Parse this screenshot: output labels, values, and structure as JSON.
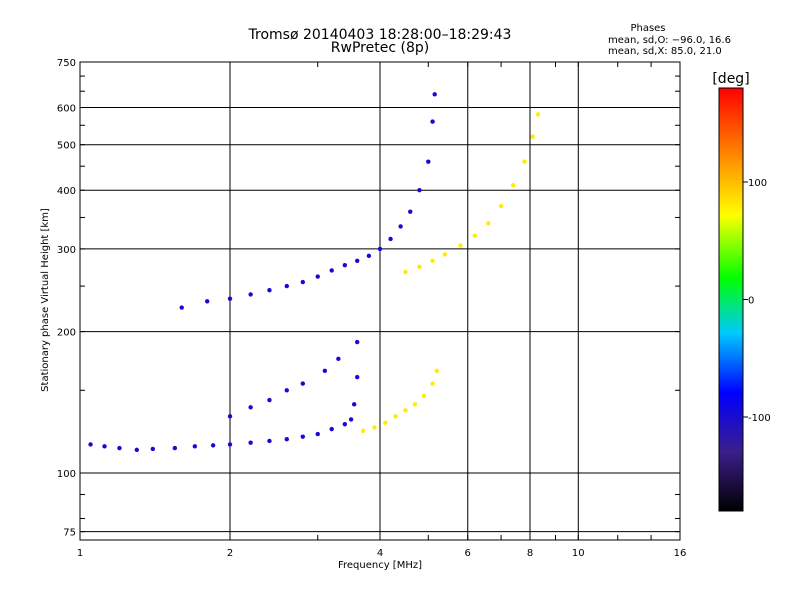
{
  "chart_data": {
    "type": "scatter",
    "title": "Tromsø 20140403 18:28:00–18:29:43",
    "subtitle": "RwPretec (8p)",
    "xlabel": "Frequency [MHz]",
    "ylabel": "Stationary phase Virtual Height [km]",
    "x_scale": "log",
    "y_scale": "log",
    "xlim": [
      1,
      16
    ],
    "ylim": [
      72,
      750
    ],
    "x_ticks": [
      1,
      2,
      4,
      6,
      8,
      10,
      16
    ],
    "y_ticks": [
      75,
      100,
      200,
      300,
      400,
      500,
      600,
      750
    ],
    "grid": true,
    "stats": {
      "heading": "Phases",
      "line_o": "mean, sd,O: −96.0, 16.6",
      "line_x": "mean, sd,X:  85.0, 21.0"
    },
    "colorbar": {
      "label": "[deg]",
      "range": [
        -180,
        180
      ],
      "ticks": [
        100,
        0,
        -100
      ],
      "colormap": "rainbow",
      "colors": [
        "#000000",
        "#3b1e8a",
        "#0000ff",
        "#00c8ff",
        "#00ff00",
        "#ffff00",
        "#ff8000",
        "#ff0000"
      ]
    },
    "series": [
      {
        "name": "O",
        "phase_deg": -96,
        "points": [
          [
            1.05,
            115
          ],
          [
            1.12,
            114
          ],
          [
            1.2,
            113
          ],
          [
            1.3,
            112
          ],
          [
            1.4,
            112.5
          ],
          [
            1.55,
            113
          ],
          [
            1.7,
            114
          ],
          [
            1.85,
            114.5
          ],
          [
            2.0,
            115
          ],
          [
            2.2,
            116
          ],
          [
            2.4,
            117
          ],
          [
            2.6,
            118
          ],
          [
            2.8,
            119.5
          ],
          [
            3.0,
            121
          ],
          [
            3.2,
            124
          ],
          [
            3.4,
            127
          ],
          [
            3.5,
            130
          ],
          [
            3.55,
            140
          ],
          [
            3.6,
            160
          ],
          [
            3.6,
            190
          ],
          [
            1.6,
            225
          ],
          [
            1.8,
            232
          ],
          [
            2.0,
            235
          ],
          [
            2.2,
            240
          ],
          [
            2.4,
            245
          ],
          [
            2.6,
            250
          ],
          [
            2.8,
            255
          ],
          [
            3.0,
            262
          ],
          [
            3.2,
            270
          ],
          [
            3.4,
            277
          ],
          [
            3.6,
            283
          ],
          [
            3.8,
            290
          ],
          [
            4.0,
            300
          ],
          [
            4.2,
            315
          ],
          [
            4.4,
            335
          ],
          [
            4.6,
            360
          ],
          [
            4.8,
            400
          ],
          [
            5.0,
            460
          ],
          [
            5.1,
            560
          ],
          [
            5.15,
            640
          ],
          [
            2.0,
            132
          ],
          [
            2.2,
            138
          ],
          [
            2.4,
            143
          ],
          [
            2.6,
            150
          ],
          [
            2.8,
            155
          ],
          [
            3.1,
            165
          ],
          [
            3.3,
            175
          ]
        ]
      },
      {
        "name": "X",
        "phase_deg": 85,
        "points": [
          [
            3.7,
            123
          ],
          [
            3.9,
            125
          ],
          [
            4.1,
            128
          ],
          [
            4.3,
            132
          ],
          [
            4.5,
            136
          ],
          [
            4.7,
            140
          ],
          [
            4.9,
            146
          ],
          [
            5.1,
            155
          ],
          [
            5.2,
            165
          ],
          [
            4.5,
            268
          ],
          [
            4.8,
            275
          ],
          [
            5.1,
            283
          ],
          [
            5.4,
            292
          ],
          [
            5.8,
            305
          ],
          [
            6.2,
            320
          ],
          [
            6.6,
            340
          ],
          [
            7.0,
            370
          ],
          [
            7.4,
            410
          ],
          [
            7.8,
            460
          ],
          [
            8.1,
            520
          ],
          [
            8.3,
            580
          ]
        ]
      }
    ]
  }
}
